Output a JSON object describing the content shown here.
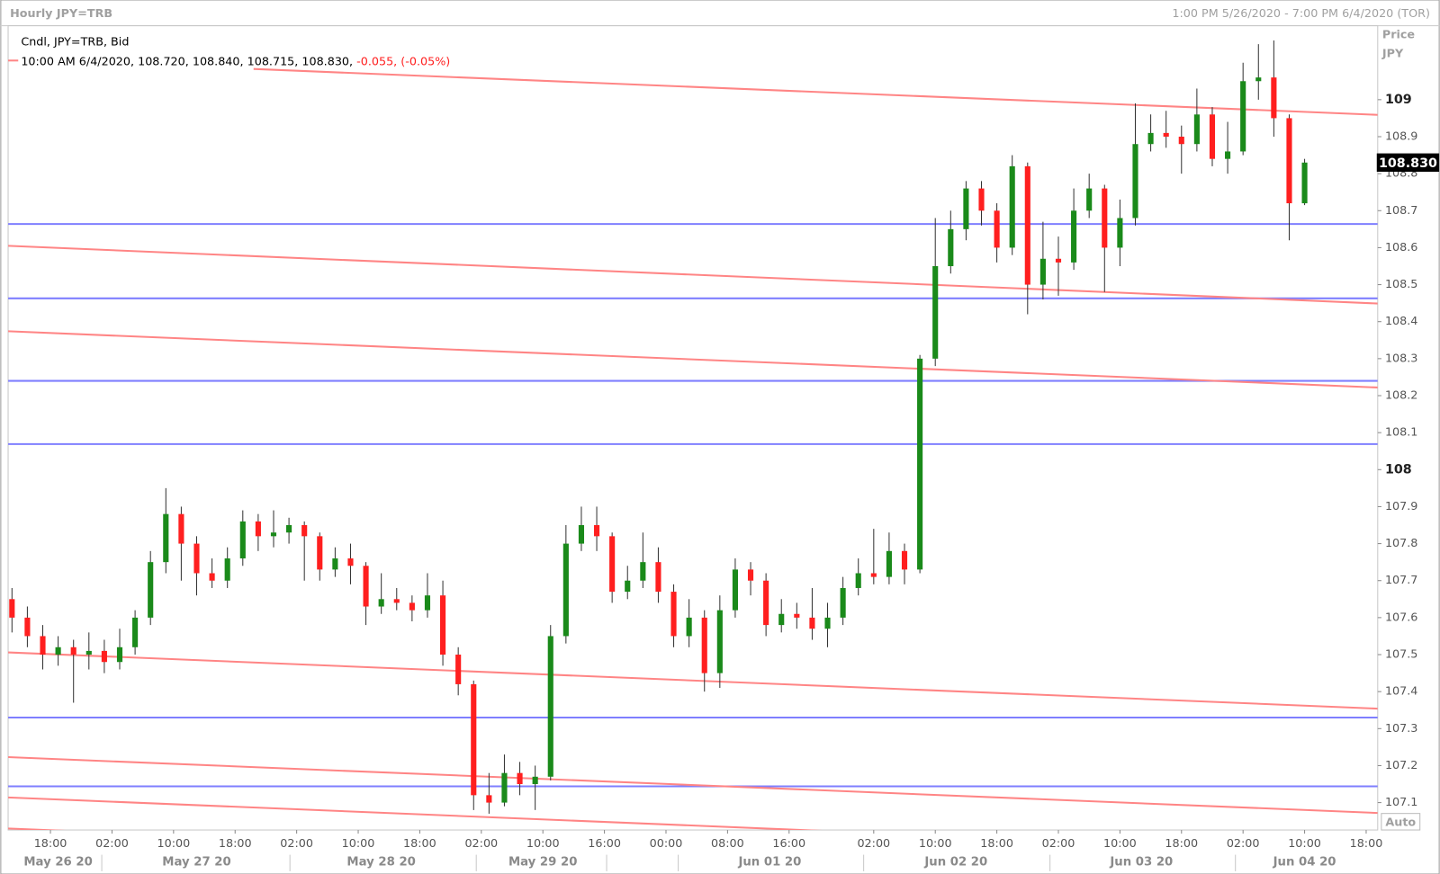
{
  "header": {
    "title": "Hourly JPY=TRB",
    "range": "1:00 PM 5/26/2020 - 7:00 PM 6/4/2020 (TOR)"
  },
  "chart_data": {
    "type": "candlestick",
    "legend": "Cndl, JPY=TRB, Bid",
    "info": "10:00 AM 6/4/2020, 108.720, 108.840, 108.715, 108.830, ",
    "change": "-0.055, (-0.05%)",
    "y_label": "Price",
    "y_unit": "JPY",
    "scale_mode": "Auto",
    "up_color": "#1a8a1a",
    "down_color": "#ff1f1f",
    "xlim": [
      -0.5,
      177.5
    ],
    "ylim": [
      107.026,
      109.2
    ],
    "yticks": [
      109,
      108.9,
      108.8,
      108.7,
      108.6,
      108.5,
      108.4,
      108.3,
      108.2,
      108.1,
      108,
      107.9,
      107.8,
      107.7,
      107.6,
      107.5,
      107.4,
      107.3,
      107.2,
      107.1
    ],
    "xticks": [
      {
        "value": 5,
        "label": "18:00"
      },
      {
        "value": 13,
        "label": "02:00"
      },
      {
        "value": 21,
        "label": "10:00"
      },
      {
        "value": 29,
        "label": "18:00"
      },
      {
        "value": 37,
        "label": "02:00"
      },
      {
        "value": 45,
        "label": "10:00"
      },
      {
        "value": 53,
        "label": "18:00"
      },
      {
        "value": 61,
        "label": "02:00"
      },
      {
        "value": 69,
        "label": "10:00"
      },
      {
        "value": 77,
        "label": "16:00"
      },
      {
        "value": 85,
        "label": "00:00"
      },
      {
        "value": 93,
        "label": "08:00"
      },
      {
        "value": 101,
        "label": "16:00"
      },
      {
        "value": 112,
        "label": "02:00"
      },
      {
        "value": 120,
        "label": "10:00"
      },
      {
        "value": 128,
        "label": "18:00"
      },
      {
        "value": 136,
        "label": "02:00"
      },
      {
        "value": 144,
        "label": "10:00"
      },
      {
        "value": 152,
        "label": "18:00"
      },
      {
        "value": 160,
        "label": "02:00"
      },
      {
        "value": 168,
        "label": "10:00"
      },
      {
        "value": 176,
        "label": "18:00"
      }
    ],
    "date_ticks": [
      {
        "value": 6,
        "label": "May 26 20"
      },
      {
        "value": 24,
        "label": "May 27 20"
      },
      {
        "value": 48,
        "label": "May 28 20"
      },
      {
        "value": 69,
        "label": "May 29 20"
      },
      {
        "value": 98.5,
        "label": "Jun 01 20"
      },
      {
        "value": 122.7,
        "label": "Jun 02 20"
      },
      {
        "value": 146.8,
        "label": "Jun 03 20"
      },
      {
        "value": 168,
        "label": "Jun 04 20"
      }
    ],
    "x": [
      0,
      2,
      4,
      6,
      8,
      10,
      12,
      14,
      16,
      18,
      20,
      22,
      24,
      26,
      28,
      30,
      32,
      34,
      36,
      38,
      40,
      42,
      44,
      46,
      48,
      50,
      52,
      54,
      56,
      58,
      60,
      62,
      64,
      66,
      68,
      70,
      72,
      74,
      76,
      78,
      80,
      82,
      84,
      86,
      88,
      90,
      92,
      94,
      96,
      98,
      100,
      102,
      104,
      106,
      108,
      110,
      112,
      114,
      116,
      118,
      120,
      122,
      124,
      126,
      128,
      130,
      132,
      134,
      136,
      138,
      140,
      142,
      144,
      146,
      148,
      150,
      152,
      154,
      156,
      158,
      160,
      162,
      164,
      166,
      168
    ],
    "open": [
      107.65,
      107.6,
      107.55,
      107.5,
      107.52,
      107.5,
      107.51,
      107.48,
      107.52,
      107.6,
      107.75,
      107.88,
      107.8,
      107.72,
      107.7,
      107.76,
      107.86,
      107.82,
      107.83,
      107.85,
      107.82,
      107.73,
      107.76,
      107.74,
      107.63,
      107.65,
      107.64,
      107.62,
      107.66,
      107.5,
      107.42,
      107.12,
      107.1,
      107.18,
      107.15,
      107.17,
      107.55,
      107.8,
      107.85,
      107.82,
      107.67,
      107.7,
      107.75,
      107.67,
      107.55,
      107.6,
      107.45,
      107.62,
      107.73,
      107.7,
      107.58,
      107.61,
      107.6,
      107.57,
      107.6,
      107.68,
      107.72,
      107.71,
      107.78,
      107.73,
      108.3,
      108.55,
      108.65,
      108.76,
      108.7,
      108.6,
      108.82,
      108.5,
      108.57,
      108.56,
      108.7,
      108.76,
      108.6,
      108.68,
      108.88,
      108.91,
      108.9,
      108.88,
      108.96,
      108.84,
      108.86,
      109.05,
      109.06,
      108.95,
      108.72
    ],
    "high": [
      107.68,
      107.63,
      107.58,
      107.55,
      107.54,
      107.56,
      107.54,
      107.57,
      107.62,
      107.78,
      107.95,
      107.9,
      107.82,
      107.76,
      107.79,
      107.89,
      107.88,
      107.89,
      107.87,
      107.86,
      107.83,
      107.79,
      107.8,
      107.75,
      107.72,
      107.68,
      107.66,
      107.72,
      107.7,
      107.52,
      107.43,
      107.18,
      107.23,
      107.21,
      107.2,
      107.58,
      107.85,
      107.9,
      107.9,
      107.83,
      107.74,
      107.83,
      107.79,
      107.69,
      107.65,
      107.62,
      107.66,
      107.76,
      107.75,
      107.72,
      107.65,
      107.64,
      107.68,
      107.64,
      107.71,
      107.76,
      107.84,
      107.83,
      107.8,
      108.31,
      108.68,
      108.7,
      108.78,
      108.78,
      108.72,
      108.85,
      108.83,
      108.67,
      108.63,
      108.76,
      108.8,
      108.77,
      108.73,
      108.99,
      108.96,
      108.97,
      108.93,
      109.03,
      108.98,
      108.94,
      109.1,
      109.15,
      109.16,
      108.96,
      108.84
    ],
    "low": [
      107.56,
      107.52,
      107.46,
      107.47,
      107.37,
      107.46,
      107.45,
      107.46,
      107.5,
      107.58,
      107.72,
      107.7,
      107.66,
      107.68,
      107.68,
      107.74,
      107.78,
      107.79,
      107.8,
      107.7,
      107.7,
      107.71,
      107.69,
      107.58,
      107.61,
      107.62,
      107.59,
      107.6,
      107.47,
      107.39,
      107.08,
      107.07,
      107.09,
      107.12,
      107.08,
      107.16,
      107.53,
      107.78,
      107.78,
      107.64,
      107.65,
      107.68,
      107.64,
      107.52,
      107.52,
      107.4,
      107.41,
      107.6,
      107.66,
      107.55,
      107.56,
      107.57,
      107.54,
      107.52,
      107.58,
      107.66,
      107.69,
      107.69,
      107.69,
      107.72,
      108.28,
      108.53,
      108.62,
      108.66,
      108.56,
      108.58,
      108.42,
      108.46,
      108.47,
      108.54,
      108.68,
      108.48,
      108.55,
      108.66,
      108.86,
      108.87,
      108.8,
      108.86,
      108.82,
      108.8,
      108.85,
      109.0,
      108.9,
      108.62,
      108.715
    ],
    "close": [
      107.6,
      107.55,
      107.5,
      107.52,
      107.5,
      107.51,
      107.48,
      107.52,
      107.6,
      107.75,
      107.88,
      107.8,
      107.72,
      107.7,
      107.76,
      107.86,
      107.82,
      107.83,
      107.85,
      107.82,
      107.73,
      107.76,
      107.74,
      107.63,
      107.65,
      107.64,
      107.62,
      107.66,
      107.5,
      107.42,
      107.12,
      107.1,
      107.18,
      107.15,
      107.17,
      107.55,
      107.8,
      107.85,
      107.82,
      107.67,
      107.7,
      107.75,
      107.67,
      107.55,
      107.6,
      107.45,
      107.62,
      107.73,
      107.7,
      107.58,
      107.61,
      107.6,
      107.57,
      107.6,
      107.68,
      107.72,
      107.71,
      107.78,
      107.73,
      108.3,
      108.55,
      108.65,
      108.76,
      108.7,
      108.6,
      108.82,
      108.5,
      108.57,
      108.56,
      108.7,
      108.76,
      108.6,
      108.68,
      108.88,
      108.91,
      108.9,
      108.88,
      108.96,
      108.84,
      108.86,
      109.05,
      109.06,
      108.95,
      108.72,
      108.83
    ],
    "last_price": {
      "value": 108.83,
      "label": "108.830"
    },
    "hlines": {
      "color": "#7f7fff",
      "values": [
        108.664,
        108.463,
        108.24,
        108.069,
        107.33,
        107.144
      ]
    },
    "trend_lines": {
      "color": "#ff8585",
      "lines": [
        {
          "x": [
            31.4,
            177.5
          ],
          "y": [
            109.083,
            108.959
          ]
        },
        {
          "x": [
            -0.5,
            177.5
          ],
          "y": [
            108.605,
            108.449
          ]
        },
        {
          "x": [
            -0.5,
            177.5
          ],
          "y": [
            108.374,
            108.222
          ]
        },
        {
          "x": [
            -0.5,
            177.5
          ],
          "y": [
            107.506,
            107.354
          ]
        },
        {
          "x": [
            -0.5,
            177.5
          ],
          "y": [
            107.223,
            107.072
          ]
        },
        {
          "x": [
            -0.5,
            177.5
          ],
          "y": [
            107.114,
            106.962
          ]
        },
        {
          "x": [
            -0.5,
            177.5
          ],
          "y": [
            107.03,
            106.88
          ]
        }
      ]
    }
  }
}
